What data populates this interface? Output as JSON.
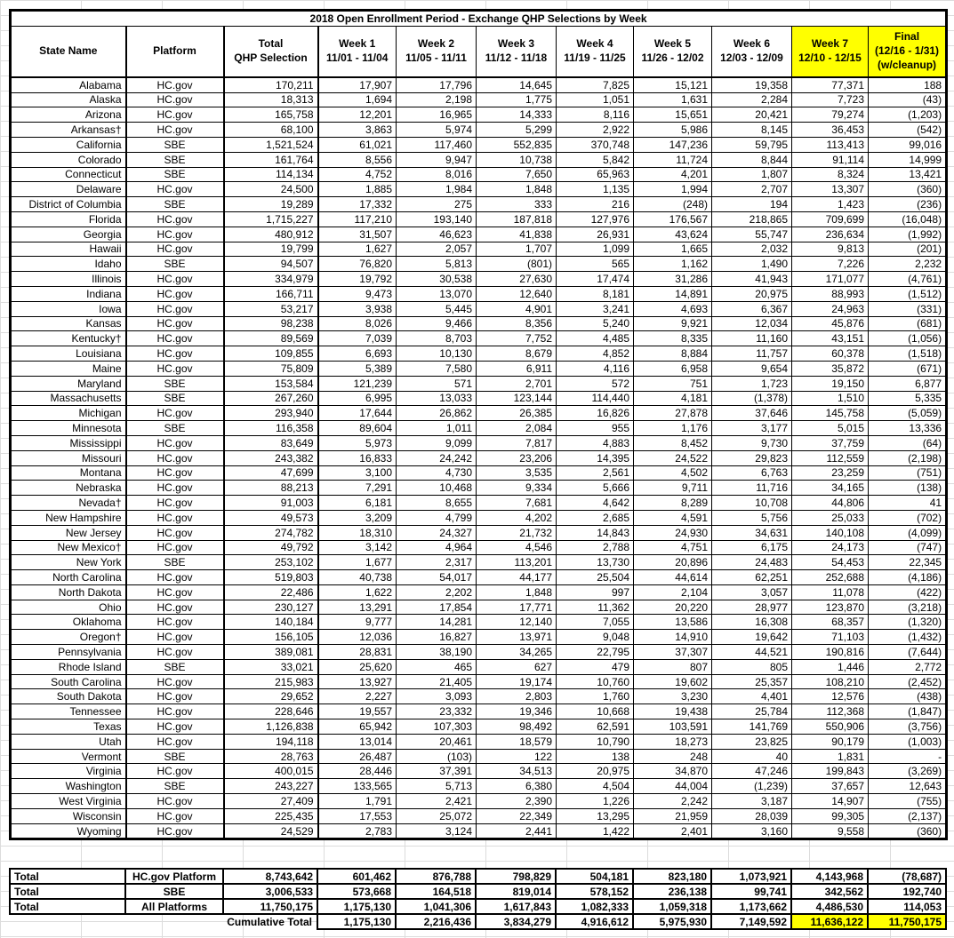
{
  "title": "2018 Open Enrollment Period - Exchange QHP Selections by Week",
  "colors": {
    "highlight": "#ffff00",
    "grid": "#dcdcdc",
    "border": "#000000"
  },
  "columns": [
    {
      "lines": [
        "State Name"
      ],
      "highlight": false
    },
    {
      "lines": [
        "Platform"
      ],
      "highlight": false
    },
    {
      "lines": [
        "Total",
        "QHP Selection"
      ],
      "highlight": false
    },
    {
      "lines": [
        "Week 1",
        "11/01 - 11/04"
      ],
      "highlight": false
    },
    {
      "lines": [
        "Week 2",
        "11/05 - 11/11"
      ],
      "highlight": false
    },
    {
      "lines": [
        "Week 3",
        "11/12 - 11/18"
      ],
      "highlight": false
    },
    {
      "lines": [
        "Week 4",
        "11/19 - 11/25"
      ],
      "highlight": false
    },
    {
      "lines": [
        "Week 5",
        "11/26 - 12/02"
      ],
      "highlight": false
    },
    {
      "lines": [
        "Week 6",
        "12/03 - 12/09"
      ],
      "highlight": false
    },
    {
      "lines": [
        "Week 7",
        "12/10 - 12/15"
      ],
      "highlight": true
    },
    {
      "lines": [
        "Final",
        "(12/16 - 1/31)",
        "(w/cleanup)"
      ],
      "highlight": true
    }
  ],
  "rows": [
    [
      "Alabama",
      "HC.gov",
      "170,211",
      "17,907",
      "17,796",
      "14,645",
      "7,825",
      "15,121",
      "19,358",
      "77,371",
      "188"
    ],
    [
      "Alaska",
      "HC.gov",
      "18,313",
      "1,694",
      "2,198",
      "1,775",
      "1,051",
      "1,631",
      "2,284",
      "7,723",
      "(43)"
    ],
    [
      "Arizona",
      "HC.gov",
      "165,758",
      "12,201",
      "16,965",
      "14,333",
      "8,116",
      "15,651",
      "20,421",
      "79,274",
      "(1,203)"
    ],
    [
      "Arkansas†",
      "HC.gov",
      "68,100",
      "3,863",
      "5,974",
      "5,299",
      "2,922",
      "5,986",
      "8,145",
      "36,453",
      "(542)"
    ],
    [
      "California",
      "SBE",
      "1,521,524",
      "61,021",
      "117,460",
      "552,835",
      "370,748",
      "147,236",
      "59,795",
      "113,413",
      "99,016"
    ],
    [
      "Colorado",
      "SBE",
      "161,764",
      "8,556",
      "9,947",
      "10,738",
      "5,842",
      "11,724",
      "8,844",
      "91,114",
      "14,999"
    ],
    [
      "Connecticut",
      "SBE",
      "114,134",
      "4,752",
      "8,016",
      "7,650",
      "65,963",
      "4,201",
      "1,807",
      "8,324",
      "13,421"
    ],
    [
      "Delaware",
      "HC.gov",
      "24,500",
      "1,885",
      "1,984",
      "1,848",
      "1,135",
      "1,994",
      "2,707",
      "13,307",
      "(360)"
    ],
    [
      "District of Columbia",
      "SBE",
      "19,289",
      "17,332",
      "275",
      "333",
      "216",
      "(248)",
      "194",
      "1,423",
      "(236)"
    ],
    [
      "Florida",
      "HC.gov",
      "1,715,227",
      "117,210",
      "193,140",
      "187,818",
      "127,976",
      "176,567",
      "218,865",
      "709,699",
      "(16,048)"
    ],
    [
      "Georgia",
      "HC.gov",
      "480,912",
      "31,507",
      "46,623",
      "41,838",
      "26,931",
      "43,624",
      "55,747",
      "236,634",
      "(1,992)"
    ],
    [
      "Hawaii",
      "HC.gov",
      "19,799",
      "1,627",
      "2,057",
      "1,707",
      "1,099",
      "1,665",
      "2,032",
      "9,813",
      "(201)"
    ],
    [
      "Idaho",
      "SBE",
      "94,507",
      "76,820",
      "5,813",
      "(801)",
      "565",
      "1,162",
      "1,490",
      "7,226",
      "2,232"
    ],
    [
      "Illinois",
      "HC.gov",
      "334,979",
      "19,792",
      "30,538",
      "27,630",
      "17,474",
      "31,286",
      "41,943",
      "171,077",
      "(4,761)"
    ],
    [
      "Indiana",
      "HC.gov",
      "166,711",
      "9,473",
      "13,070",
      "12,640",
      "8,181",
      "14,891",
      "20,975",
      "88,993",
      "(1,512)"
    ],
    [
      "Iowa",
      "HC.gov",
      "53,217",
      "3,938",
      "5,445",
      "4,901",
      "3,241",
      "4,693",
      "6,367",
      "24,963",
      "(331)"
    ],
    [
      "Kansas",
      "HC.gov",
      "98,238",
      "8,026",
      "9,466",
      "8,356",
      "5,240",
      "9,921",
      "12,034",
      "45,876",
      "(681)"
    ],
    [
      "Kentucky†",
      "HC.gov",
      "89,569",
      "7,039",
      "8,703",
      "7,752",
      "4,485",
      "8,335",
      "11,160",
      "43,151",
      "(1,056)"
    ],
    [
      "Louisiana",
      "HC.gov",
      "109,855",
      "6,693",
      "10,130",
      "8,679",
      "4,852",
      "8,884",
      "11,757",
      "60,378",
      "(1,518)"
    ],
    [
      "Maine",
      "HC.gov",
      "75,809",
      "5,389",
      "7,580",
      "6,911",
      "4,116",
      "6,958",
      "9,654",
      "35,872",
      "(671)"
    ],
    [
      "Maryland",
      "SBE",
      "153,584",
      "121,239",
      "571",
      "2,701",
      "572",
      "751",
      "1,723",
      "19,150",
      "6,877"
    ],
    [
      "Massachusetts",
      "SBE",
      "267,260",
      "6,995",
      "13,033",
      "123,144",
      "114,440",
      "4,181",
      "(1,378)",
      "1,510",
      "5,335"
    ],
    [
      "Michigan",
      "HC.gov",
      "293,940",
      "17,644",
      "26,862",
      "26,385",
      "16,826",
      "27,878",
      "37,646",
      "145,758",
      "(5,059)"
    ],
    [
      "Minnesota",
      "SBE",
      "116,358",
      "89,604",
      "1,011",
      "2,084",
      "955",
      "1,176",
      "3,177",
      "5,015",
      "13,336"
    ],
    [
      "Mississippi",
      "HC.gov",
      "83,649",
      "5,973",
      "9,099",
      "7,817",
      "4,883",
      "8,452",
      "9,730",
      "37,759",
      "(64)"
    ],
    [
      "Missouri",
      "HC.gov",
      "243,382",
      "16,833",
      "24,242",
      "23,206",
      "14,395",
      "24,522",
      "29,823",
      "112,559",
      "(2,198)"
    ],
    [
      "Montana",
      "HC.gov",
      "47,699",
      "3,100",
      "4,730",
      "3,535",
      "2,561",
      "4,502",
      "6,763",
      "23,259",
      "(751)"
    ],
    [
      "Nebraska",
      "HC.gov",
      "88,213",
      "7,291",
      "10,468",
      "9,334",
      "5,666",
      "9,711",
      "11,716",
      "34,165",
      "(138)"
    ],
    [
      "Nevada†",
      "HC.gov",
      "91,003",
      "6,181",
      "8,655",
      "7,681",
      "4,642",
      "8,289",
      "10,708",
      "44,806",
      "41"
    ],
    [
      "New Hampshire",
      "HC.gov",
      "49,573",
      "3,209",
      "4,799",
      "4,202",
      "2,685",
      "4,591",
      "5,756",
      "25,033",
      "(702)"
    ],
    [
      "New Jersey",
      "HC.gov",
      "274,782",
      "18,310",
      "24,327",
      "21,732",
      "14,843",
      "24,930",
      "34,631",
      "140,108",
      "(4,099)"
    ],
    [
      "New Mexico†",
      "HC.gov",
      "49,792",
      "3,142",
      "4,964",
      "4,546",
      "2,788",
      "4,751",
      "6,175",
      "24,173",
      "(747)"
    ],
    [
      "New York",
      "SBE",
      "253,102",
      "1,677",
      "2,317",
      "113,201",
      "13,730",
      "20,896",
      "24,483",
      "54,453",
      "22,345"
    ],
    [
      "North Carolina",
      "HC.gov",
      "519,803",
      "40,738",
      "54,017",
      "44,177",
      "25,504",
      "44,614",
      "62,251",
      "252,688",
      "(4,186)"
    ],
    [
      "North Dakota",
      "HC.gov",
      "22,486",
      "1,622",
      "2,202",
      "1,848",
      "997",
      "2,104",
      "3,057",
      "11,078",
      "(422)"
    ],
    [
      "Ohio",
      "HC.gov",
      "230,127",
      "13,291",
      "17,854",
      "17,771",
      "11,362",
      "20,220",
      "28,977",
      "123,870",
      "(3,218)"
    ],
    [
      "Oklahoma",
      "HC.gov",
      "140,184",
      "9,777",
      "14,281",
      "12,140",
      "7,055",
      "13,586",
      "16,308",
      "68,357",
      "(1,320)"
    ],
    [
      "Oregon†",
      "HC.gov",
      "156,105",
      "12,036",
      "16,827",
      "13,971",
      "9,048",
      "14,910",
      "19,642",
      "71,103",
      "(1,432)"
    ],
    [
      "Pennsylvania",
      "HC.gov",
      "389,081",
      "28,831",
      "38,190",
      "34,265",
      "22,795",
      "37,307",
      "44,521",
      "190,816",
      "(7,644)"
    ],
    [
      "Rhode Island",
      "SBE",
      "33,021",
      "25,620",
      "465",
      "627",
      "479",
      "807",
      "805",
      "1,446",
      "2,772"
    ],
    [
      "South Carolina",
      "HC.gov",
      "215,983",
      "13,927",
      "21,405",
      "19,174",
      "10,760",
      "19,602",
      "25,357",
      "108,210",
      "(2,452)"
    ],
    [
      "South Dakota",
      "HC.gov",
      "29,652",
      "2,227",
      "3,093",
      "2,803",
      "1,760",
      "3,230",
      "4,401",
      "12,576",
      "(438)"
    ],
    [
      "Tennessee",
      "HC.gov",
      "228,646",
      "19,557",
      "23,332",
      "19,346",
      "10,668",
      "19,438",
      "25,784",
      "112,368",
      "(1,847)"
    ],
    [
      "Texas",
      "HC.gov",
      "1,126,838",
      "65,942",
      "107,303",
      "98,492",
      "62,591",
      "103,591",
      "141,769",
      "550,906",
      "(3,756)"
    ],
    [
      "Utah",
      "HC.gov",
      "194,118",
      "13,014",
      "20,461",
      "18,579",
      "10,790",
      "18,273",
      "23,825",
      "90,179",
      "(1,003)"
    ],
    [
      "Vermont",
      "SBE",
      "28,763",
      "26,487",
      "(103)",
      "122",
      "138",
      "248",
      "40",
      "1,831",
      "-"
    ],
    [
      "Virginia",
      "HC.gov",
      "400,015",
      "28,446",
      "37,391",
      "34,513",
      "20,975",
      "34,870",
      "47,246",
      "199,843",
      "(3,269)"
    ],
    [
      "Washington",
      "SBE",
      "243,227",
      "133,565",
      "5,713",
      "6,380",
      "4,504",
      "44,004",
      "(1,239)",
      "37,657",
      "12,643"
    ],
    [
      "West Virginia",
      "HC.gov",
      "27,409",
      "1,791",
      "2,421",
      "2,390",
      "1,226",
      "2,242",
      "3,187",
      "14,907",
      "(755)"
    ],
    [
      "Wisconsin",
      "HC.gov",
      "225,435",
      "17,553",
      "25,072",
      "22,349",
      "13,295",
      "21,959",
      "28,039",
      "99,305",
      "(2,137)"
    ],
    [
      "Wyoming",
      "HC.gov",
      "24,529",
      "2,783",
      "3,124",
      "2,441",
      "1,422",
      "2,401",
      "3,160",
      "9,558",
      "(360)"
    ]
  ],
  "totals": [
    [
      "Total",
      "HC.gov Platform",
      "8,743,642",
      "601,462",
      "876,788",
      "798,829",
      "504,181",
      "823,180",
      "1,073,921",
      "4,143,968",
      "(78,687)"
    ],
    [
      "Total",
      "SBE",
      "3,006,533",
      "573,668",
      "164,518",
      "819,014",
      "578,152",
      "236,138",
      "99,741",
      "342,562",
      "192,740"
    ],
    [
      "Total",
      "All Platforms",
      "11,750,175",
      "1,175,130",
      "1,041,306",
      "1,617,843",
      "1,082,333",
      "1,059,318",
      "1,173,662",
      "4,486,530",
      "114,053"
    ]
  ],
  "cumulative": {
    "label": "Cumulative Total",
    "values": [
      "1,175,130",
      "2,216,436",
      "3,834,279",
      "4,916,612",
      "5,975,930",
      "7,149,592",
      "11,636,122",
      "11,750,175"
    ],
    "highlight_from": 6
  }
}
